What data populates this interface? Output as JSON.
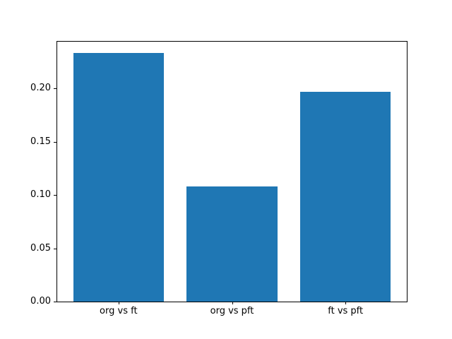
{
  "chart_data": {
    "type": "bar",
    "categories": [
      "org vs ft",
      "org vs pft",
      "ft vs pft"
    ],
    "values": [
      0.233,
      0.108,
      0.197
    ],
    "title": "",
    "xlabel": "",
    "ylabel": "",
    "ylim": [
      0,
      0.2438
    ],
    "xlim": [
      -0.54,
      2.54
    ],
    "yticks": [
      0.0,
      0.05,
      0.1,
      0.15,
      0.2
    ],
    "ytick_labels": [
      "0.00",
      "0.05",
      "0.10",
      "0.15",
      "0.20"
    ],
    "bar_width": 0.8,
    "bar_color": "#1f77b4",
    "background_color": "#ffffff",
    "spine_color": "#000000",
    "grid": false,
    "legend": false
  }
}
